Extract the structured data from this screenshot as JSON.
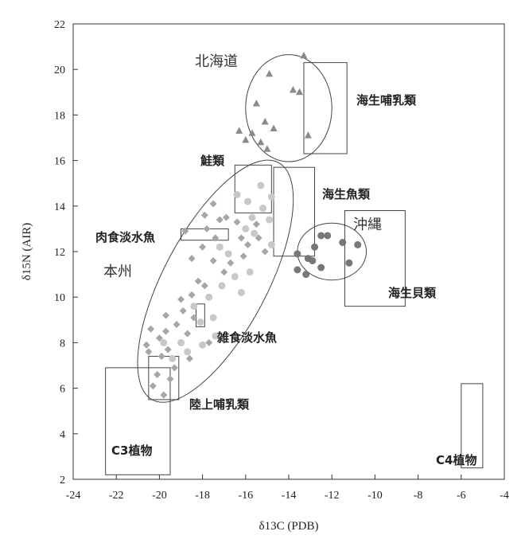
{
  "chart_data": {
    "type": "scatter",
    "title": "",
    "xlabel": "δ13C (PDB)",
    "ylabel": "δ15N (AIR)",
    "xlim": [
      -24,
      -4
    ],
    "ylim": [
      2,
      22
    ],
    "x_ticks": [
      -24,
      -22,
      -20,
      -18,
      -16,
      -14,
      -12,
      -10,
      -8,
      -6,
      -4
    ],
    "y_ticks": [
      2,
      4,
      6,
      8,
      10,
      12,
      14,
      16,
      18,
      20,
      22
    ],
    "grid": false,
    "boxes": [
      {
        "label": "C3植物",
        "x": [
          -22.5,
          -19.5
        ],
        "y": [
          2.2,
          6.9
        ]
      },
      {
        "label": "陸上哺乳類",
        "x": [
          -20.5,
          -19.1
        ],
        "y": [
          5.5,
          7.4
        ]
      },
      {
        "label": "肉食淡水魚",
        "x": [
          -19.0,
          -16.8
        ],
        "y": [
          12.5,
          13.0
        ]
      },
      {
        "label": "雑食淡水魚",
        "x": [
          -18.3,
          -17.9
        ],
        "y": [
          8.7,
          9.7
        ]
      },
      {
        "label": "鮭類",
        "x": [
          -16.5,
          -14.8
        ],
        "y": [
          13.7,
          15.8
        ]
      },
      {
        "label": "海生魚類",
        "x": [
          -14.7,
          -12.8
        ],
        "y": [
          11.8,
          15.7
        ]
      },
      {
        "label": "海生哺乳類",
        "x": [
          -13.3,
          -11.3
        ],
        "y": [
          16.3,
          20.3
        ]
      },
      {
        "label": "海生貝類",
        "x": [
          -11.4,
          -8.6
        ],
        "y": [
          9.6,
          13.8
        ]
      },
      {
        "label": "C4植物",
        "x": [
          -6.0,
          -5.0
        ],
        "y": [
          2.5,
          6.2
        ]
      }
    ],
    "regions": [
      {
        "label": "北海道",
        "cx": -14.0,
        "cy": 18.3,
        "rx": 2.0,
        "ry": 2.35,
        "rotate": 0
      },
      {
        "label": "沖縄",
        "cx": -12.0,
        "cy": 12.0,
        "rx": 1.6,
        "ry": 1.25,
        "rotate": 0
      },
      {
        "label": "本州",
        "cx": -17.4,
        "cy": 10.7,
        "rx": 2.4,
        "ry": 5.9,
        "rotate": 28
      }
    ],
    "series": [
      {
        "marker": "triangle",
        "color": "#8a8a8a",
        "points": [
          [
            -13.3,
            20.6
          ],
          [
            -14.9,
            19.8
          ],
          [
            -15.5,
            18.5
          ],
          [
            -16.3,
            17.3
          ],
          [
            -15.7,
            17.2
          ],
          [
            -15.1,
            17.7
          ],
          [
            -14.7,
            17.4
          ],
          [
            -15.3,
            16.8
          ],
          [
            -15.0,
            16.5
          ],
          [
            -16.0,
            16.9
          ],
          [
            -13.1,
            17.1
          ],
          [
            -13.8,
            19.1
          ],
          [
            -13.5,
            19.0
          ]
        ]
      },
      {
        "marker": "circle",
        "color": "#777777",
        "points": [
          [
            -12.5,
            12.7
          ],
          [
            -12.2,
            12.7
          ],
          [
            -11.5,
            12.4
          ],
          [
            -10.8,
            12.3
          ],
          [
            -12.8,
            12.2
          ],
          [
            -13.1,
            11.7
          ],
          [
            -13.6,
            11.9
          ],
          [
            -12.9,
            11.6
          ],
          [
            -12.5,
            11.3
          ],
          [
            -11.2,
            11.5
          ],
          [
            -13.6,
            11.2
          ],
          [
            -13.2,
            11.0
          ]
        ]
      },
      {
        "marker": "diamond",
        "color": "#a6a6a6",
        "points": [
          [
            -20.4,
            8.6
          ],
          [
            -20.0,
            8.2
          ],
          [
            -19.7,
            8.5
          ],
          [
            -20.6,
            7.9
          ],
          [
            -19.6,
            7.7
          ],
          [
            -19.2,
            8.8
          ],
          [
            -18.9,
            9.4
          ],
          [
            -18.5,
            10.1
          ],
          [
            -18.2,
            10.7
          ],
          [
            -19.7,
            9.2
          ],
          [
            -20.5,
            7.6
          ],
          [
            -19.9,
            7.4
          ],
          [
            -19.3,
            6.9
          ],
          [
            -20.1,
            6.6
          ],
          [
            -18.4,
            9.1
          ],
          [
            -17.9,
            10.5
          ],
          [
            -17.5,
            11.6
          ],
          [
            -18.0,
            12.2
          ],
          [
            -17.4,
            12.6
          ],
          [
            -17.8,
            13.0
          ],
          [
            -17.2,
            13.4
          ],
          [
            -17.9,
            13.6
          ],
          [
            -17.5,
            14.1
          ],
          [
            -16.9,
            13.5
          ],
          [
            -16.4,
            13.3
          ],
          [
            -16.2,
            12.6
          ],
          [
            -15.9,
            12.3
          ],
          [
            -16.1,
            11.8
          ],
          [
            -15.5,
            13.2
          ],
          [
            -15.4,
            12.6
          ],
          [
            -16.7,
            11.5
          ],
          [
            -17.0,
            11.1
          ],
          [
            -15.1,
            12.0
          ],
          [
            -18.7,
            8.4
          ],
          [
            -19.5,
            6.4
          ],
          [
            -20.3,
            6.1
          ],
          [
            -19.8,
            5.7
          ],
          [
            -18.6,
            7.3
          ],
          [
            -17.7,
            8.0
          ],
          [
            -18.8,
            12.9
          ],
          [
            -18.5,
            11.7
          ],
          [
            -19.0,
            9.9
          ]
        ]
      },
      {
        "marker": "circle",
        "color": "#c8c8c8",
        "points": [
          [
            -16.4,
            14.5
          ],
          [
            -15.9,
            14.2
          ],
          [
            -15.3,
            14.9
          ],
          [
            -14.8,
            14.4
          ],
          [
            -15.7,
            13.5
          ],
          [
            -15.2,
            13.9
          ],
          [
            -14.9,
            13.4
          ],
          [
            -15.6,
            12.8
          ],
          [
            -16.0,
            13.0
          ],
          [
            -17.2,
            12.2
          ],
          [
            -16.8,
            11.9
          ],
          [
            -17.1,
            10.5
          ],
          [
            -17.7,
            10.0
          ],
          [
            -18.4,
            9.6
          ],
          [
            -17.5,
            9.1
          ],
          [
            -18.1,
            8.9
          ],
          [
            -17.4,
            8.3
          ],
          [
            -18.0,
            7.9
          ],
          [
            -18.7,
            7.6
          ],
          [
            -19.0,
            8.0
          ],
          [
            -19.4,
            7.3
          ],
          [
            -19.8,
            8.0
          ],
          [
            -16.5,
            10.9
          ],
          [
            -16.2,
            10.2
          ],
          [
            -15.8,
            11.1
          ],
          [
            -14.8,
            12.3
          ]
        ]
      }
    ]
  },
  "text": {
    "hokkaido": "北海道",
    "kaisei_honyu": "海生哺乳類",
    "sake": "鮭類",
    "kaisei_gyorui": "海生魚類",
    "okinawa": "沖縄",
    "nikushoku": "肉食淡水魚",
    "honshu": "本州",
    "kaisei_kairui": "海生貝類",
    "zasshoku": "雑食淡水魚",
    "rikujo": "陸上哺乳類",
    "c3": "C3植物",
    "c4": "C4植物"
  }
}
